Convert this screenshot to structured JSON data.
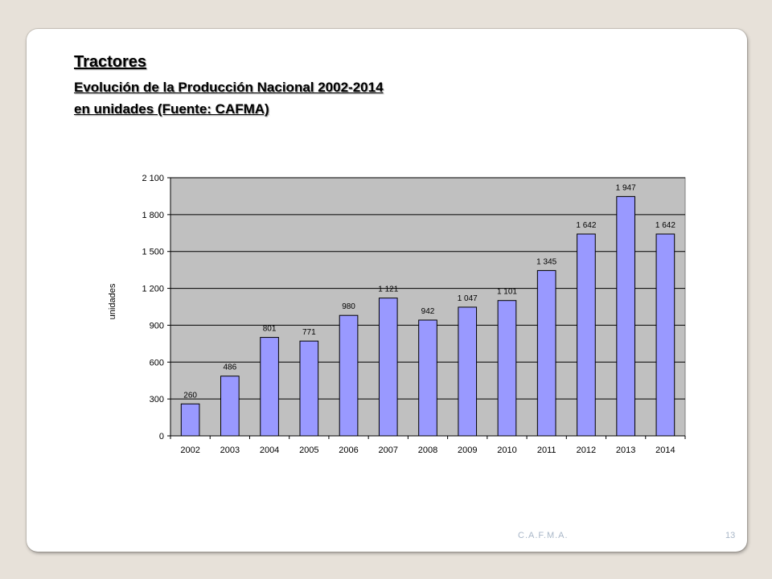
{
  "slide": {
    "title": "Tractores",
    "subtitle": "Evolución de la Producción Nacional 2002-2014",
    "subtitle2": "en unidades (Fuente: CAFMA)",
    "footer_org": "C.A.F.M.A.",
    "page_number": "13"
  },
  "chart_data": {
    "type": "bar",
    "categories": [
      "2002",
      "2003",
      "2004",
      "2005",
      "2006",
      "2007",
      "2008",
      "2009",
      "2010",
      "2011",
      "2012",
      "2013",
      "2014"
    ],
    "values": [
      260,
      486,
      801,
      771,
      980,
      1121,
      942,
      1047,
      1101,
      1345,
      1642,
      1947,
      1642
    ],
    "value_labels": [
      "260",
      "486",
      "801",
      "771",
      "980",
      "1 121",
      "942",
      "1 047",
      "1 101",
      "1 345",
      "1 642",
      "1 947",
      "1 642"
    ],
    "ylabel": "unidades",
    "ylim": [
      0,
      2100
    ],
    "yticks": [
      0,
      300,
      600,
      900,
      1200,
      1500,
      1800,
      2100
    ],
    "ytick_labels": [
      "0",
      "300",
      "600",
      "900",
      "1 200",
      "1 500",
      "1 800",
      "2 100"
    ],
    "grid": true,
    "colors": {
      "bar": "#9999ff",
      "bar_border": "#000000",
      "plot_bg": "#c0c0c0"
    }
  }
}
